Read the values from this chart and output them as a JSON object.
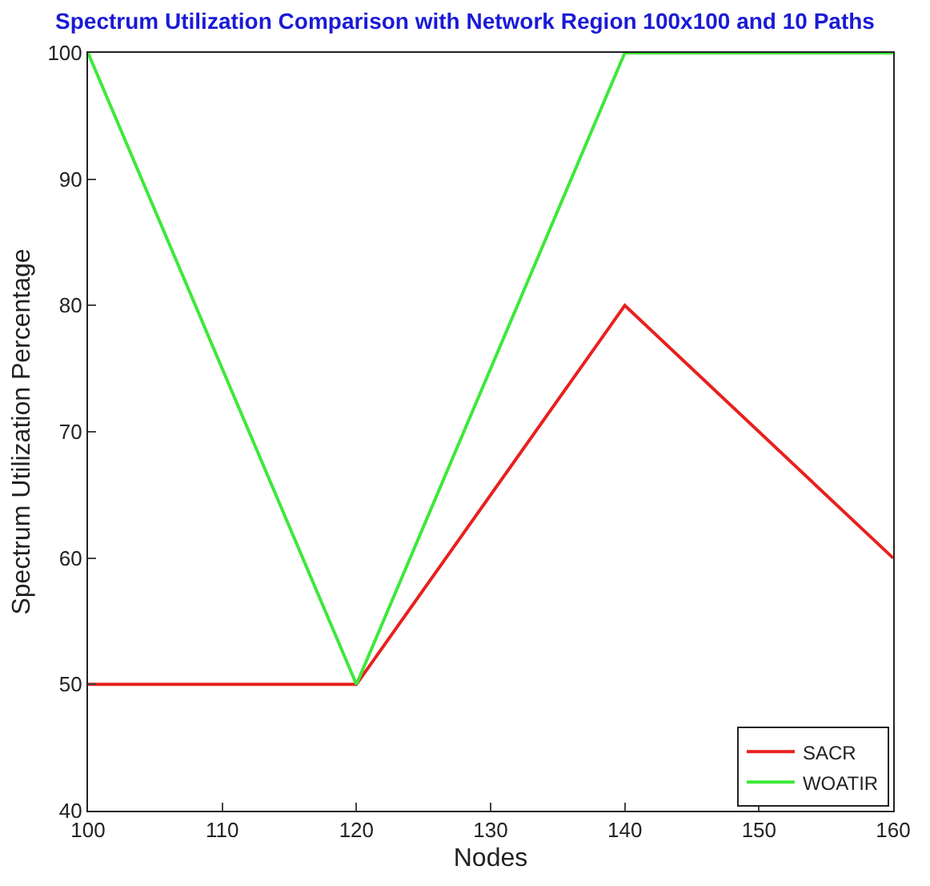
{
  "chart_data": {
    "type": "line",
    "title": "Spectrum Utilization Comparison with Network Region 100x100 and 10 Paths",
    "xlabel": "Nodes",
    "ylabel": "Spectrum Utilization Percentage",
    "x": [
      100,
      120,
      140,
      160
    ],
    "series": [
      {
        "name": "SACR",
        "color": "#e8201e",
        "values": [
          50,
          50,
          80,
          60
        ]
      },
      {
        "name": "WOATIR",
        "color": "#3ee83a",
        "values": [
          100,
          50,
          100,
          100
        ]
      }
    ],
    "xlim": [
      100,
      160
    ],
    "xticks": [
      100,
      110,
      120,
      130,
      140,
      150,
      160
    ],
    "ylim": [
      40,
      100
    ],
    "yticks": [
      40,
      50,
      60,
      70,
      80,
      90,
      100
    ],
    "legend": "bottom right",
    "marker": "none",
    "line_style": "solid"
  }
}
